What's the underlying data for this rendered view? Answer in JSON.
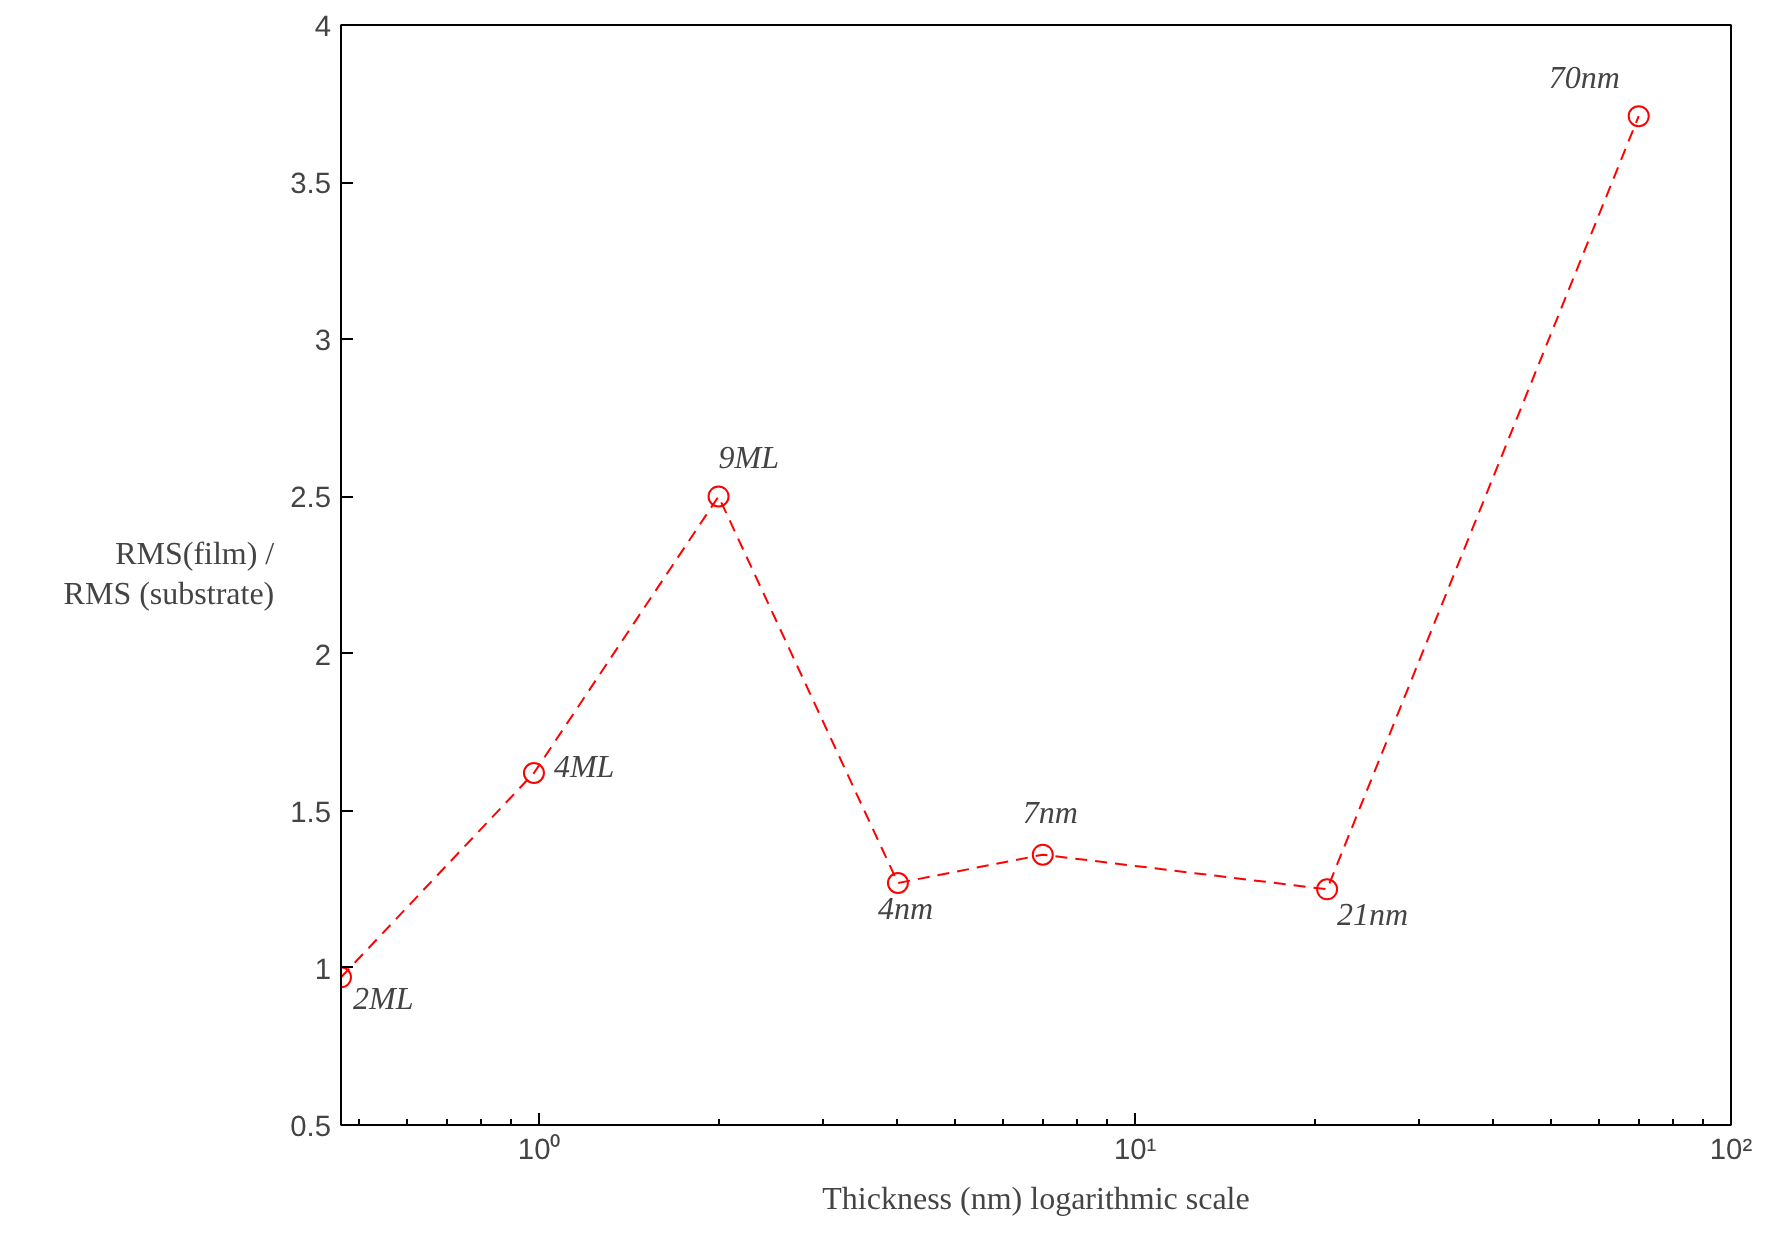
{
  "chart_data": {
    "type": "line",
    "xlabel": "Thickness (nm) logarithmic scale",
    "ylabel": "RMS(film) /\nRMS (substrate)",
    "x": [
      0.465,
      0.98,
      2.0,
      4.0,
      7.0,
      21,
      70
    ],
    "series": [
      {
        "color": "#ff0000",
        "values": [
          0.97,
          1.62,
          2.5,
          1.27,
          1.36,
          1.25,
          3.71
        ]
      }
    ],
    "xlim": [
      0.465,
      100
    ],
    "ylim": [
      0.5,
      4
    ],
    "xticks": [
      {
        "value": 1,
        "label": "10⁰"
      },
      {
        "value": 10,
        "label": "10¹"
      },
      {
        "value": 100,
        "label": "10²"
      }
    ],
    "yticks": [
      0.5,
      1,
      1.5,
      2,
      2.5,
      3,
      3.5,
      4
    ],
    "log": "x",
    "grid": false,
    "marker": "circle",
    "line_style": "dashed",
    "annotations": [
      {
        "text": "2ML",
        "x": 0.465,
        "y": 0.97
      },
      {
        "text": "4ML",
        "x": 0.98,
        "y": 1.62
      },
      {
        "text": "9ML",
        "x": 2.0,
        "y": 2.5
      },
      {
        "text": "4nm",
        "x": 4.0,
        "y": 1.27
      },
      {
        "text": "7nm",
        "x": 7.0,
        "y": 1.36
      },
      {
        "text": "21nm",
        "x": 21,
        "y": 1.25
      },
      {
        "text": "70nm",
        "x": 70,
        "y": 3.71
      }
    ]
  }
}
